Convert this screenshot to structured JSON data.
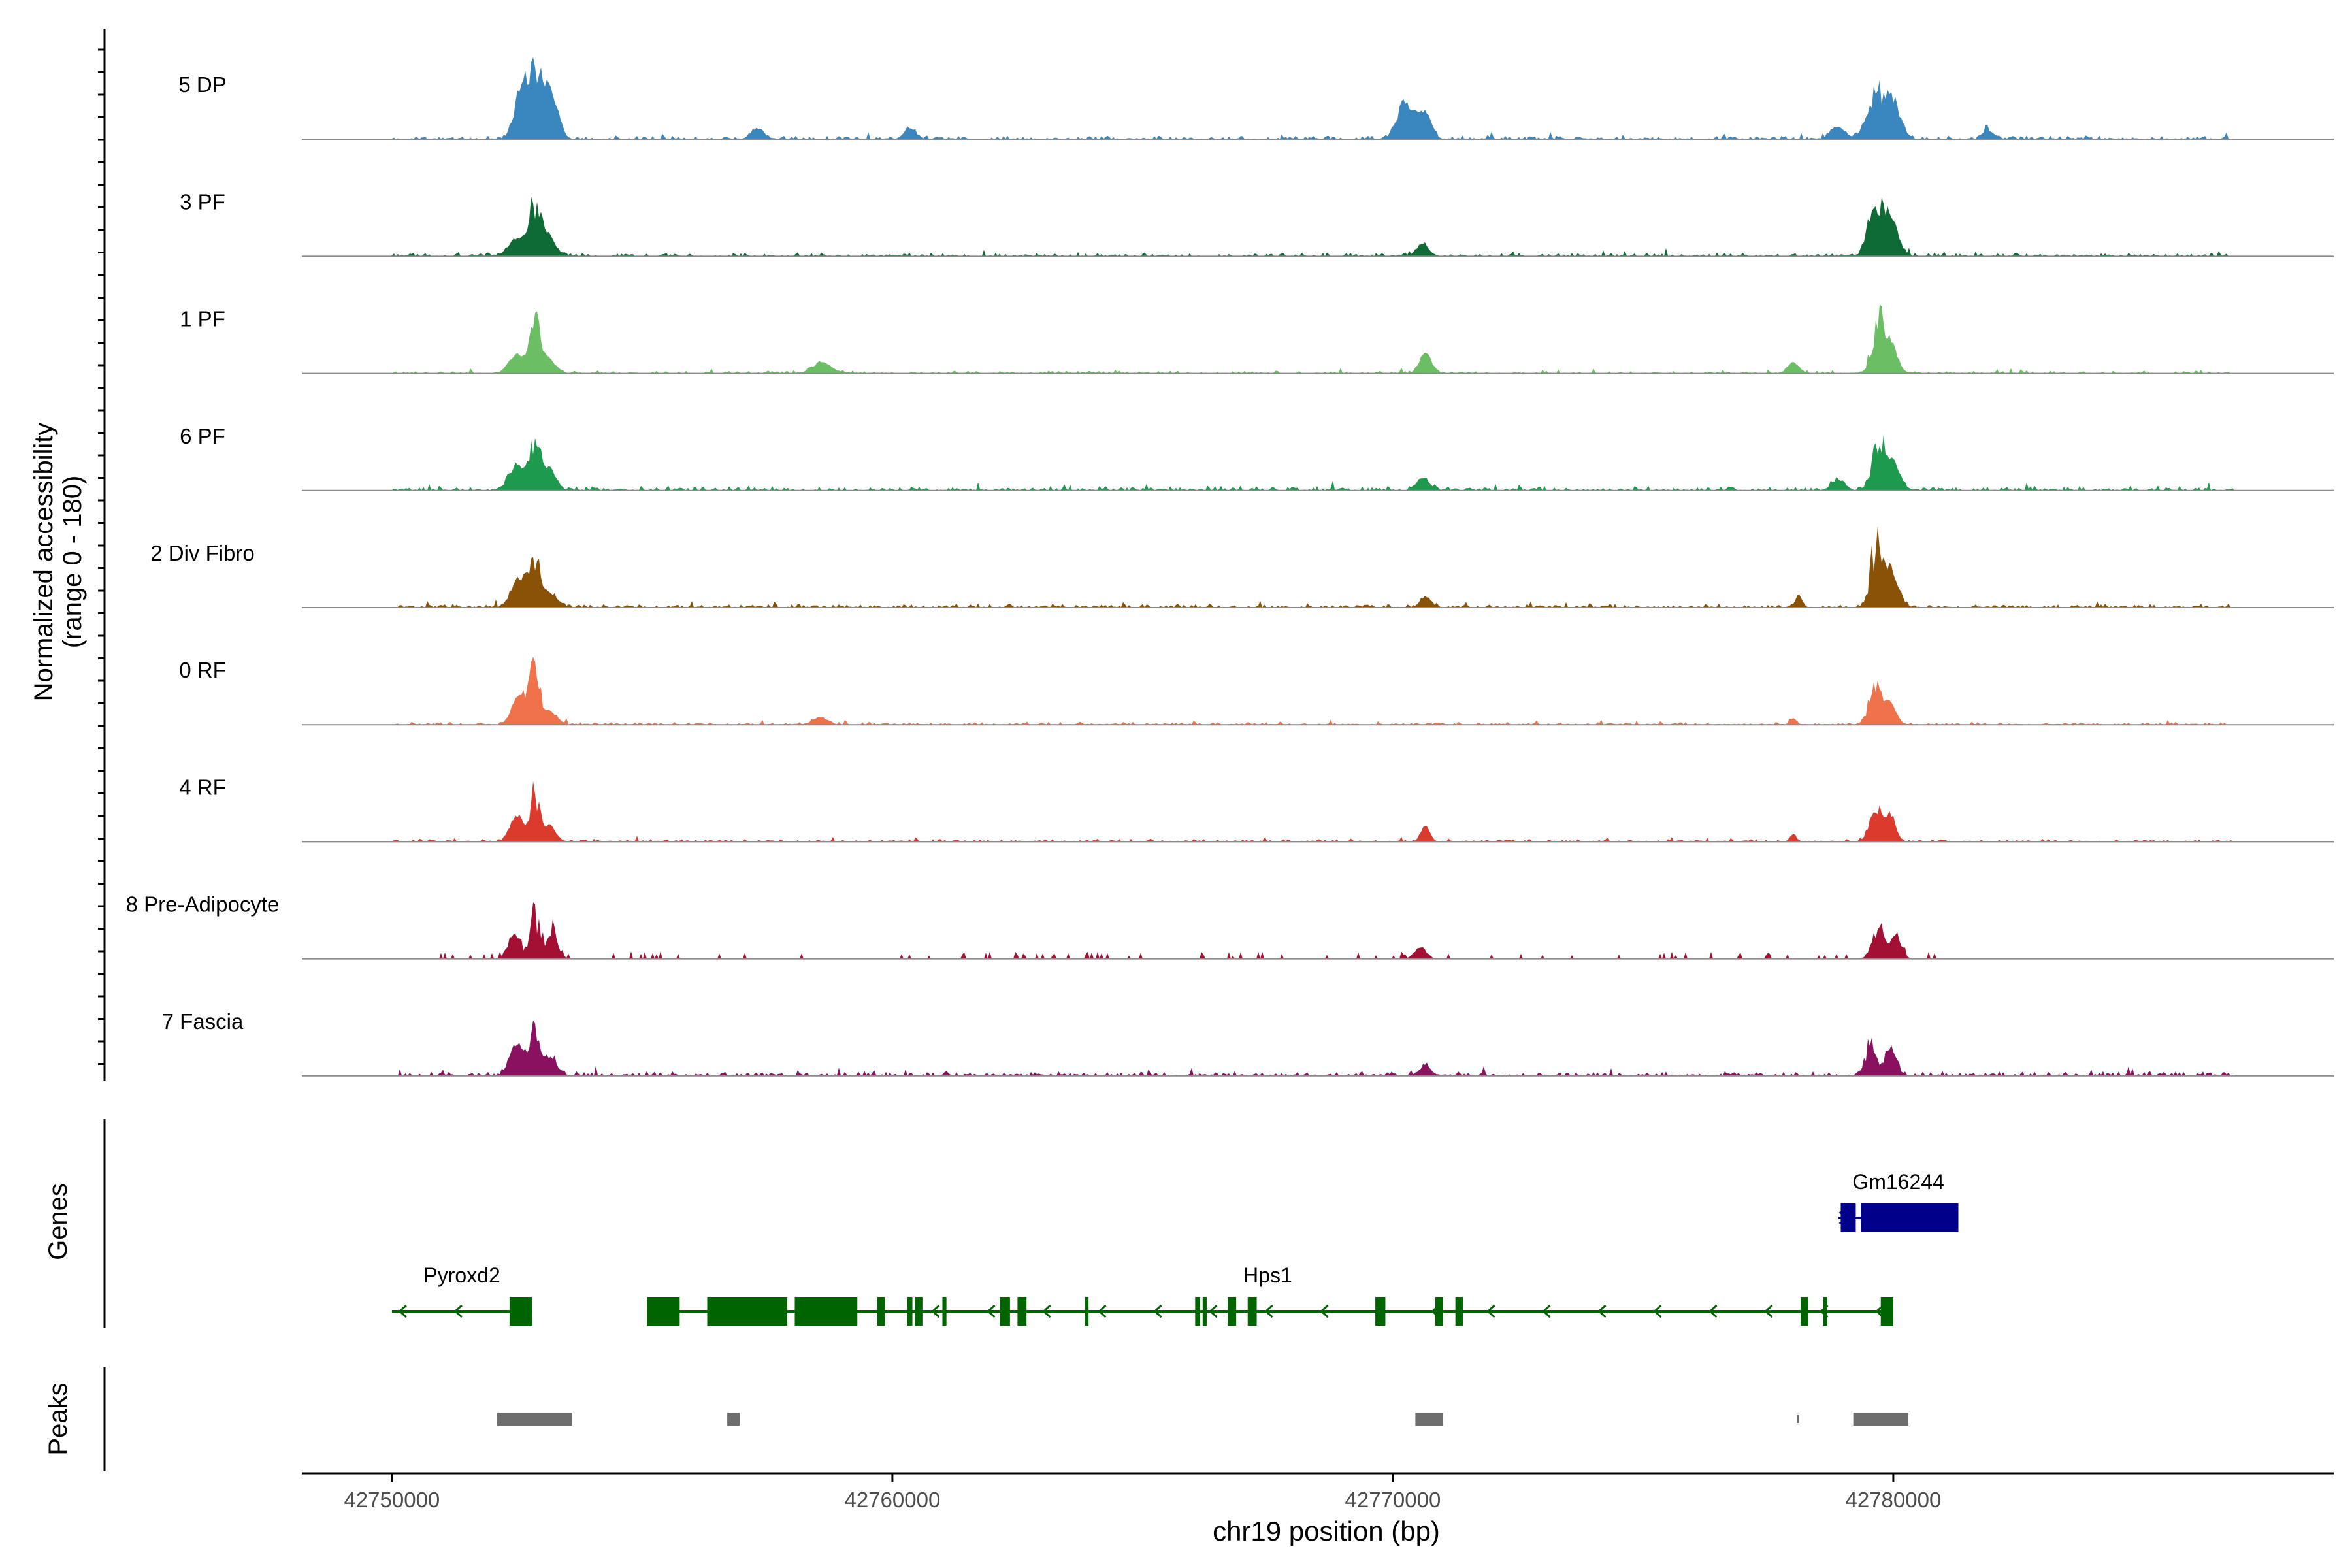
{
  "chart_data": {
    "type": "area",
    "chromosome": "chr19",
    "region": [
      42748200,
      42788800
    ],
    "xlabel": "chr19 position (bp)",
    "ylabel_line1": "Normalized accessibility",
    "ylabel_line2": "(range 0 - 180)",
    "yrange": [
      0,
      180
    ],
    "x_ticks": [
      42750000,
      42760000,
      42770000,
      42780000
    ],
    "x_tick_labels": [
      "42750000",
      "42760000",
      "42770000",
      "42780000"
    ],
    "tracks": [
      {
        "name": "5 DP",
        "color": "#3a87c0",
        "peaks": [
          [
            42752550,
            130,
            70,
            0.55
          ],
          [
            42752800,
            170,
            110,
            0.8
          ],
          [
            42753000,
            150,
            90,
            0.65
          ],
          [
            42753250,
            120,
            55,
            0.3
          ],
          [
            42757300,
            130,
            18,
            0.0
          ],
          [
            42760350,
            110,
            20,
            0.0
          ],
          [
            42770250,
            160,
            80,
            0.55
          ],
          [
            42770650,
            120,
            50,
            0.2
          ],
          [
            42778900,
            140,
            22,
            0.0
          ],
          [
            42779700,
            200,
            110,
            1.0
          ],
          [
            42780000,
            150,
            60,
            0.35
          ],
          [
            42781900,
            110,
            16,
            0.0
          ]
        ],
        "noise_amp": 4,
        "noise_start": 42750000,
        "noise_end": 42786800
      },
      {
        "name": "3 PF",
        "color": "#0e6b35",
        "peaks": [
          [
            42752500,
            160,
            35,
            0.2
          ],
          [
            42752850,
            110,
            120,
            0.95
          ],
          [
            42753100,
            150,
            40,
            0.2
          ],
          [
            42770600,
            120,
            22,
            0.0
          ],
          [
            42779650,
            150,
            125,
            1.0
          ],
          [
            42779950,
            150,
            75,
            0.4
          ]
        ],
        "noise_amp": 4,
        "noise_start": 42750000,
        "noise_end": 42786800
      },
      {
        "name": "1 PF",
        "color": "#6bbe63",
        "peaks": [
          [
            42752500,
            160,
            35,
            0.2
          ],
          [
            42752850,
            100,
            115,
            0.95
          ],
          [
            42753100,
            150,
            30,
            0.2
          ],
          [
            42758600,
            180,
            20,
            0.0
          ],
          [
            42770650,
            110,
            38,
            0.0
          ],
          [
            42778000,
            110,
            20,
            0.0
          ],
          [
            42779700,
            130,
            120,
            1.0
          ],
          [
            42779950,
            130,
            55,
            0.35
          ]
        ],
        "noise_amp": 3,
        "noise_start": 42750000,
        "noise_end": 42786800
      },
      {
        "name": "6 PF",
        "color": "#1e9a4e",
        "peaks": [
          [
            42752500,
            160,
            45,
            0.25
          ],
          [
            42752850,
            110,
            110,
            0.95
          ],
          [
            42753150,
            130,
            42,
            0.2
          ],
          [
            42770600,
            130,
            22,
            0.0
          ],
          [
            42778900,
            130,
            18,
            0.0
          ],
          [
            42779700,
            130,
            120,
            1.0
          ],
          [
            42780000,
            130,
            55,
            0.35
          ]
        ],
        "noise_amp": 5,
        "noise_start": 42750000,
        "noise_end": 42786800
      },
      {
        "name": "2 Div Fibro",
        "color": "#8a5207",
        "peaks": [
          [
            42752550,
            150,
            60,
            0.3
          ],
          [
            42752850,
            100,
            115,
            0.95
          ],
          [
            42753150,
            150,
            28,
            0.2
          ],
          [
            42770650,
            110,
            18,
            0.0
          ],
          [
            42778100,
            60,
            20,
            0.0
          ],
          [
            42779650,
            110,
            150,
            1.0
          ],
          [
            42779950,
            140,
            80,
            0.4
          ]
        ],
        "noise_amp": 4,
        "noise_start": 42750000,
        "noise_end": 42786800
      },
      {
        "name": "0 RF",
        "color": "#f0724b",
        "peaks": [
          [
            42752550,
            140,
            60,
            0.3
          ],
          [
            42752850,
            100,
            130,
            0.95
          ],
          [
            42753150,
            140,
            25,
            0.2
          ],
          [
            42758550,
            150,
            12,
            0.0
          ],
          [
            42778000,
            60,
            12,
            0.0
          ],
          [
            42779650,
            130,
            90,
            0.8
          ],
          [
            42779950,
            110,
            40,
            0.35
          ]
        ],
        "noise_amp": 3,
        "noise_start": 42750000,
        "noise_end": 42786800
      },
      {
        "name": "4 RF",
        "color": "#dc3a2d",
        "peaks": [
          [
            42752500,
            140,
            50,
            0.3
          ],
          [
            42752850,
            90,
            130,
            0.95
          ],
          [
            42753150,
            120,
            30,
            0.2
          ],
          [
            42770650,
            90,
            28,
            0.0
          ],
          [
            42778000,
            60,
            14,
            0.0
          ],
          [
            42779650,
            120,
            85,
            0.8
          ],
          [
            42779950,
            100,
            55,
            0.4
          ]
        ],
        "noise_amp": 3,
        "noise_start": 42750000,
        "noise_end": 42786800
      },
      {
        "name": "8 Pre-Adipocyte",
        "color": "#a41034",
        "peaks": [
          [
            42752450,
            130,
            55,
            0.7
          ],
          [
            42752850,
            90,
            110,
            0.9
          ],
          [
            42753200,
            110,
            70,
            0.7
          ],
          [
            42770550,
            120,
            25,
            0.5
          ],
          [
            42779700,
            130,
            60,
            0.7
          ],
          [
            42780050,
            110,
            55,
            0.6
          ]
        ],
        "noise_amp": 14,
        "noise_start": 42750300,
        "noise_end": 42781200,
        "sparse": true
      },
      {
        "name": "7 Fascia",
        "color": "#8a1060",
        "peaks": [
          [
            42752500,
            140,
            65,
            0.3
          ],
          [
            42752850,
            100,
            95,
            0.95
          ],
          [
            42753150,
            140,
            35,
            0.2
          ],
          [
            42770650,
            110,
            18,
            0.0
          ],
          [
            42779550,
            110,
            75,
            0.8
          ],
          [
            42779950,
            110,
            60,
            0.4
          ]
        ],
        "noise_amp": 5,
        "noise_start": 42750000,
        "noise_end": 42786800
      }
    ],
    "genes_label": "Genes",
    "genes": [
      {
        "name": "Gm16244",
        "strand": "+",
        "color": "#00008b",
        "start": 42778900,
        "end": 42781300,
        "exons": [
          [
            42778950,
            42779250
          ],
          [
            42779350,
            42781300
          ]
        ]
      },
      {
        "name": "Pyroxd2",
        "strand": "-",
        "color": "#006400",
        "start": 42750000,
        "end": 42752800,
        "exons": [
          [
            42752350,
            42752800
          ]
        ],
        "label_x": 42751400
      },
      {
        "name": "Hps1",
        "strand": "-",
        "color": "#006400",
        "start": 42755100,
        "end": 42780000,
        "label_x": 42767500,
        "exons": [
          [
            42755100,
            42755750
          ],
          [
            42756300,
            42757900
          ],
          [
            42758050,
            42759300
          ],
          [
            42759700,
            42759850
          ],
          [
            42760300,
            42760400
          ],
          [
            42760450,
            42760600
          ],
          [
            42761000,
            42761080
          ],
          [
            42762150,
            42762350
          ],
          [
            42762500,
            42762680
          ],
          [
            42763850,
            42763920
          ],
          [
            42766050,
            42766150
          ],
          [
            42766200,
            42766280
          ],
          [
            42766700,
            42766870
          ],
          [
            42767100,
            42767280
          ],
          [
            42769650,
            42769850
          ],
          [
            42770850,
            42771000
          ],
          [
            42771250,
            42771400
          ],
          [
            42778150,
            42778300
          ],
          [
            42778600,
            42778680
          ],
          [
            42779750,
            42780000
          ]
        ]
      }
    ],
    "peaks_label": "Peaks",
    "peak_regions": [
      [
        42752100,
        42753600
      ],
      [
        42756700,
        42756950
      ],
      [
        42770450,
        42771000
      ],
      [
        42778070,
        42778120
      ],
      [
        42779200,
        42780300
      ]
    ]
  }
}
